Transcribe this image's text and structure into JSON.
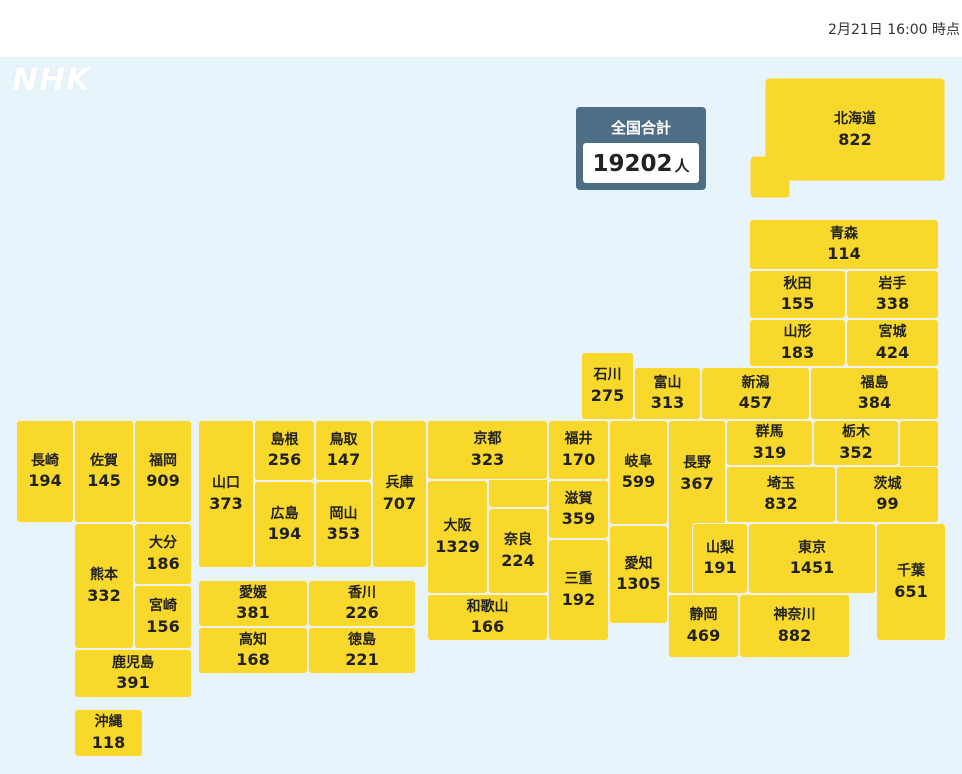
{
  "header": {
    "timestamp": "2月21日 16:00 時点",
    "logo": "NHK"
  },
  "total": {
    "label": "全国合計",
    "value": "19202",
    "unit": "人"
  },
  "colors": {
    "prefecture_fill": "#f8d82a",
    "background": "#e8f4fb",
    "total_box": "#4d6e84"
  },
  "prefectures": {
    "hokkaido": {
      "name": "北海道",
      "count": "822"
    },
    "aomori": {
      "name": "青森",
      "count": "114"
    },
    "akita": {
      "name": "秋田",
      "count": "155"
    },
    "iwate": {
      "name": "岩手",
      "count": "338"
    },
    "yamagata": {
      "name": "山形",
      "count": "183"
    },
    "miyagi": {
      "name": "宮城",
      "count": "424"
    },
    "ishikawa": {
      "name": "石川",
      "count": "275"
    },
    "toyama": {
      "name": "富山",
      "count": "313"
    },
    "niigata": {
      "name": "新潟",
      "count": "457"
    },
    "fukushima": {
      "name": "福島",
      "count": "384"
    },
    "nagasaki": {
      "name": "長崎",
      "count": "194"
    },
    "saga": {
      "name": "佐賀",
      "count": "145"
    },
    "fukuoka": {
      "name": "福岡",
      "count": "909"
    },
    "yamaguchi": {
      "name": "山口",
      "count": "373"
    },
    "shimane": {
      "name": "島根",
      "count": "256"
    },
    "tottori": {
      "name": "鳥取",
      "count": "147"
    },
    "hyogo": {
      "name": "兵庫",
      "count": "707"
    },
    "kyoto": {
      "name": "京都",
      "count": "323"
    },
    "fukui": {
      "name": "福井",
      "count": "170"
    },
    "gifu": {
      "name": "岐阜",
      "count": "599"
    },
    "nagano": {
      "name": "長野",
      "count": "367"
    },
    "gunma": {
      "name": "群馬",
      "count": "319"
    },
    "tochigi": {
      "name": "栃木",
      "count": "352"
    },
    "hiroshima": {
      "name": "広島",
      "count": "194"
    },
    "okayama": {
      "name": "岡山",
      "count": "353"
    },
    "shiga": {
      "name": "滋賀",
      "count": "359"
    },
    "saitama": {
      "name": "埼玉",
      "count": "832"
    },
    "ibaraki": {
      "name": "茨城",
      "count": "99"
    },
    "kumamoto": {
      "name": "熊本",
      "count": "332"
    },
    "oita": {
      "name": "大分",
      "count": "186"
    },
    "osaka": {
      "name": "大阪",
      "count": "1329"
    },
    "nara": {
      "name": "奈良",
      "count": "224"
    },
    "mie": {
      "name": "三重",
      "count": "192"
    },
    "aichi": {
      "name": "愛知",
      "count": "1305"
    },
    "yamanashi": {
      "name": "山梨",
      "count": "191"
    },
    "tokyo": {
      "name": "東京",
      "count": "1451"
    },
    "chiba": {
      "name": "千葉",
      "count": "651"
    },
    "miyazaki": {
      "name": "宮崎",
      "count": "156"
    },
    "ehime": {
      "name": "愛媛",
      "count": "381"
    },
    "kagawa": {
      "name": "香川",
      "count": "226"
    },
    "wakayama": {
      "name": "和歌山",
      "count": "166"
    },
    "shizuoka": {
      "name": "静岡",
      "count": "469"
    },
    "kanagawa": {
      "name": "神奈川",
      "count": "882"
    },
    "kochi": {
      "name": "高知",
      "count": "168"
    },
    "tokushima": {
      "name": "徳島",
      "count": "221"
    },
    "kagoshima": {
      "name": "鹿児島",
      "count": "391"
    },
    "okinawa": {
      "name": "沖縄",
      "count": "118"
    }
  }
}
